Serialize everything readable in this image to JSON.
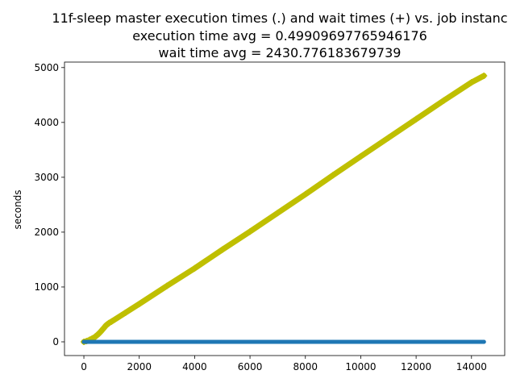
{
  "chart_data": {
    "type": "scatter",
    "title_lines": [
      "11f-sleep master execution times (.) and wait times (+) vs. job instanc",
      "execution time avg = 0.49909697765946176",
      "wait time avg = 2430.776183679739"
    ],
    "xlabel": "",
    "ylabel": "seconds",
    "xlim": [
      -700,
      15200
    ],
    "ylim": [
      -250,
      5100
    ],
    "xticks": [
      0,
      2000,
      4000,
      6000,
      8000,
      10000,
      12000,
      14000
    ],
    "yticks": [
      0,
      1000,
      2000,
      3000,
      4000,
      5000
    ],
    "grid": false,
    "legend": "none",
    "series": [
      {
        "marker": "+",
        "color": "#bfbf00",
        "x": [
          0,
          100,
          200,
          300,
          400,
          500,
          600,
          700,
          800,
          900,
          1000,
          1500,
          2000,
          3000,
          4000,
          5000,
          6000,
          7000,
          8000,
          9000,
          10000,
          11000,
          12000,
          13000,
          14000,
          14450
        ],
        "y": [
          0,
          15,
          35,
          60,
          90,
          130,
          180,
          240,
          300,
          340,
          370,
          530,
          690,
          1020,
          1340,
          1680,
          2010,
          2350,
          2690,
          3040,
          3380,
          3720,
          4060,
          4400,
          4730,
          4850
        ]
      },
      {
        "marker": ".",
        "color": "#1f77b4",
        "x": [
          0,
          1000,
          2000,
          3000,
          4000,
          5000,
          6000,
          7000,
          8000,
          9000,
          10000,
          11000,
          12000,
          13000,
          14000,
          14450
        ],
        "y": [
          0.5,
          0.5,
          0.5,
          0.5,
          0.5,
          0.5,
          0.5,
          0.5,
          0.5,
          0.5,
          0.5,
          0.5,
          0.5,
          0.5,
          0.5,
          0.5
        ]
      }
    ]
  }
}
